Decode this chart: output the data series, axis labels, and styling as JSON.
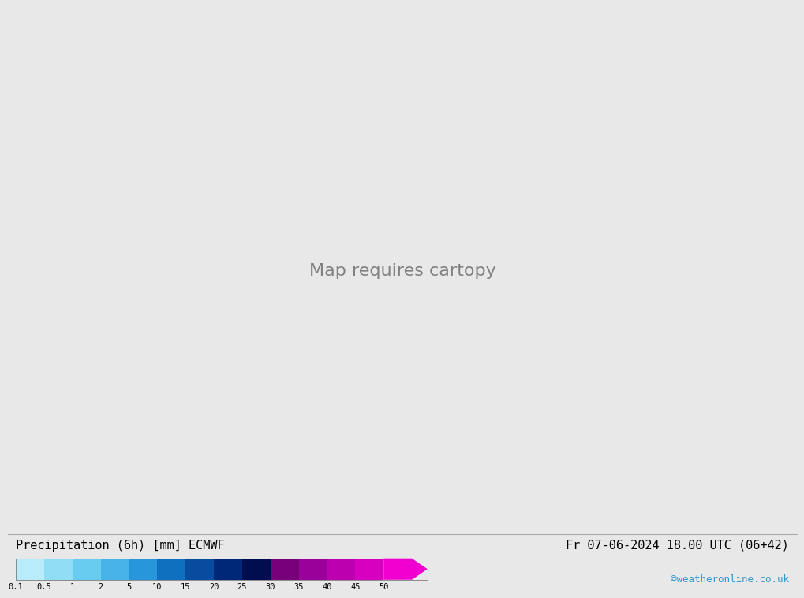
{
  "title_left": "Precipitation (6h) [mm] ECMWF",
  "title_right": "Fr 07-06-2024 18.00 UTC (06+42)",
  "watermark": "©weatheronline.co.uk",
  "colorbar_levels": [
    0.1,
    0.5,
    1,
    2,
    5,
    10,
    15,
    20,
    25,
    30,
    35,
    40,
    45,
    50
  ],
  "colorbar_colors": [
    "#b8ecfa",
    "#90ddf5",
    "#68ccf0",
    "#46b4e8",
    "#2896da",
    "#1070c0",
    "#084ca0",
    "#002878",
    "#000e50",
    "#780078",
    "#9a009a",
    "#bc00b0",
    "#d800c0",
    "#f000d0"
  ],
  "bg_color": "#e8e8e8",
  "ocean_color": "#d8eaf4",
  "land_color": "#c8e8a8",
  "grey_land_color": "#c8c8c8",
  "label_fontsize": 11,
  "tick_fontsize": 9,
  "watermark_fontsize": 9,
  "bottom_bar_color": "white",
  "map_extent": [
    -30,
    70,
    -45,
    45
  ]
}
